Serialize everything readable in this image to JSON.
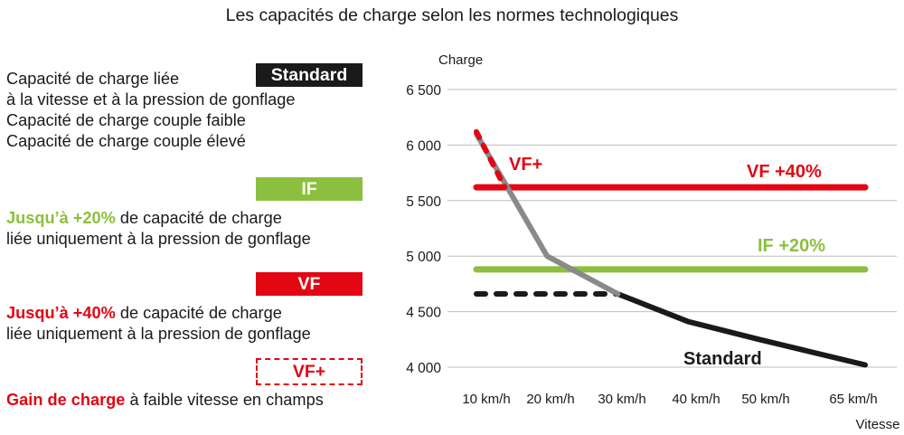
{
  "title": "Les capacités de charge selon les normes technologiques",
  "legend": {
    "standard": {
      "badge": "Standard",
      "lines": [
        "Capacité de charge liée",
        "à la vitesse et à la pression de gonflage",
        "Capacité de charge couple faible",
        "Capacité de charge couple élevé"
      ]
    },
    "if": {
      "badge": "IF",
      "highlight": "Jusqu’à +20%",
      "line1_rest": " de capacité de charge",
      "line2": "liée uniquement à la pression de gonflage"
    },
    "vf": {
      "badge": "VF",
      "highlight": "Jusqu’à +40%",
      "line1_rest": " de capacité de charge",
      "line2": "liée uniquement à la pression de gonflage"
    },
    "vfplus": {
      "badge": "VF+",
      "highlight": "Gain de charge",
      "line1_rest": " à faible vitesse en champs"
    }
  },
  "colors": {
    "standard": "#1a1a1a",
    "standard_gray": "#8a8a8a",
    "if": "#8cbf3f",
    "vf": "#e30613",
    "grid": "#bdbdbd"
  },
  "chart_data": {
    "type": "line",
    "ylabel": "Charge",
    "xlabel": "Vitesse",
    "categories": [
      "10 km/h",
      "20 km/h",
      "30 km/h",
      "40 km/h",
      "50 km/h",
      "65 km/h"
    ],
    "ylim": [
      4000,
      6500
    ],
    "yticks": [
      4000,
      4500,
      5000,
      5500,
      6000,
      6500
    ],
    "ytick_labels": [
      "4 000",
      "4 500",
      "5 000",
      "5 500",
      "6 000",
      "6 500"
    ],
    "grid": true,
    "series": [
      {
        "name": "Standard",
        "kind": "standard-high-torque",
        "style": "solid-gray",
        "x": [
          10,
          20,
          30
        ],
        "y": [
          6100,
          5000,
          4660
        ]
      },
      {
        "name": "Standard",
        "kind": "standard",
        "style": "solid-black",
        "x": [
          30,
          40,
          50,
          65
        ],
        "y": [
          4660,
          4410,
          4250,
          4020
        ]
      },
      {
        "name": "",
        "kind": "standard-low-torque",
        "style": "dotted-black",
        "x": [
          10,
          30
        ],
        "y": [
          4660,
          4660
        ]
      },
      {
        "name": "IF  +20%",
        "kind": "if",
        "style": "solid-green",
        "x": [
          10,
          65
        ],
        "y": [
          4880,
          4880
        ]
      },
      {
        "name": "VF  +40%",
        "kind": "vf",
        "style": "solid-red",
        "x": [
          10,
          65
        ],
        "y": [
          5620,
          5620
        ]
      },
      {
        "name": "VF+",
        "kind": "vfplus",
        "style": "dotted-red",
        "x": [
          10,
          14
        ],
        "y": [
          6120,
          5620
        ]
      }
    ]
  }
}
